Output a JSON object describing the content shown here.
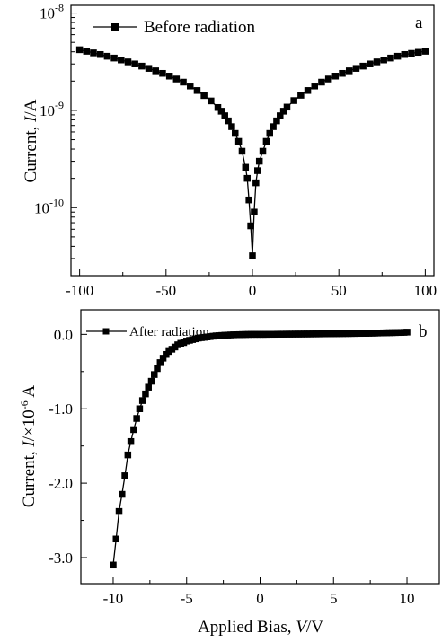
{
  "chart_data": [
    {
      "type": "scatter",
      "panel_label": "a",
      "yscale": "log",
      "ylabel_prefix": "Current, ",
      "ylabel_var": "I",
      "ylabel_suffix": "/A",
      "xlim": [
        -105,
        105
      ],
      "ylim": [
        2e-11,
        1.2e-08
      ],
      "xticks": [
        -100,
        -50,
        0,
        50,
        100
      ],
      "xtick_labels": [
        "-100",
        "-50",
        "0",
        "50",
        "100"
      ],
      "yticks": [
        1e-10,
        1e-09,
        1e-08
      ],
      "ytick_bases": [
        "10",
        "10",
        "10"
      ],
      "ytick_exps": [
        "-10",
        "-9",
        "-8"
      ],
      "legend": {
        "placement": "top-left"
      },
      "series": [
        {
          "name": "Before radiation",
          "x": [
            -100,
            -96,
            -92,
            -88,
            -84,
            -80,
            -76,
            -72,
            -68,
            -64,
            -60,
            -56,
            -52,
            -48,
            -44,
            -40,
            -36,
            -32,
            -28,
            -24,
            -20,
            -18,
            -16,
            -14,
            -12,
            -10,
            -8,
            -6,
            -4,
            -3,
            -2,
            -1,
            0,
            1,
            2,
            3,
            4,
            6,
            8,
            10,
            12,
            14,
            16,
            18,
            20,
            24,
            28,
            32,
            36,
            40,
            44,
            48,
            52,
            56,
            60,
            64,
            68,
            72,
            76,
            80,
            84,
            88,
            92,
            96,
            100
          ],
          "y": [
            4.2e-09,
            4.05e-09,
            3.9e-09,
            3.75e-09,
            3.6e-09,
            3.45e-09,
            3.3e-09,
            3.15e-09,
            3e-09,
            2.85e-09,
            2.7e-09,
            2.55e-09,
            2.4e-09,
            2.25e-09,
            2.1e-09,
            1.95e-09,
            1.78e-09,
            1.6e-09,
            1.42e-09,
            1.25e-09,
            1.07e-09,
            9.8e-10,
            8.8e-10,
            7.8e-10,
            6.8e-10,
            5.8e-10,
            4.8e-10,
            3.8e-10,
            2.6e-10,
            2e-10,
            1.2e-10,
            6.5e-11,
            3.2e-11,
            9e-11,
            1.8e-10,
            2.4e-10,
            3e-10,
            3.8e-10,
            4.8e-10,
            5.8e-10,
            6.8e-10,
            7.8e-10,
            8.8e-10,
            9.8e-10,
            1.08e-09,
            1.26e-09,
            1.43e-09,
            1.6e-09,
            1.78e-09,
            1.95e-09,
            2.1e-09,
            2.25e-09,
            2.4e-09,
            2.55e-09,
            2.7e-09,
            2.85e-09,
            3e-09,
            3.15e-09,
            3.3e-09,
            3.45e-09,
            3.6e-09,
            3.75e-09,
            3.85e-09,
            3.95e-09,
            4.05e-09
          ]
        }
      ]
    },
    {
      "type": "scatter",
      "panel_label": "b",
      "yscale": "linear",
      "xlabel_prefix": "Applied Bias, ",
      "xlabel_var": "V",
      "xlabel_suffix": "/V",
      "ylabel_prefix": "Current, ",
      "ylabel_var": "I",
      "ylabel_mid": "/×10",
      "ylabel_exp": "-6",
      "ylabel_suffix": " A",
      "xlim": [
        -12.2,
        12.2
      ],
      "ylim": [
        -3.35,
        0.33
      ],
      "xticks": [
        -10,
        -5,
        0,
        5,
        10
      ],
      "xtick_labels": [
        "-10",
        "-5",
        "0",
        "5",
        "10"
      ],
      "yticks": [
        0.0,
        -1.0,
        -2.0,
        -3.0
      ],
      "ytick_labels": [
        "0.0",
        "-1.0",
        "-2.0",
        "-3.0"
      ],
      "legend": {
        "placement": "top-left"
      },
      "series": [
        {
          "name": "After radiation",
          "x": [
            -10.0,
            -9.8,
            -9.6,
            -9.4,
            -9.2,
            -9.0,
            -8.8,
            -8.6,
            -8.4,
            -8.2,
            -8.0,
            -7.8,
            -7.6,
            -7.4,
            -7.2,
            -7.0,
            -6.8,
            -6.6,
            -6.4,
            -6.2,
            -6.0,
            -5.8,
            -5.6,
            -5.4,
            -5.2,
            -5.0,
            -4.8,
            -4.6,
            -4.4,
            -4.2,
            -4.0,
            -3.8,
            -3.6,
            -3.4,
            -3.2,
            -3.0,
            -2.8,
            -2.6,
            -2.4,
            -2.2,
            -2.0,
            -1.8,
            -1.6,
            -1.4,
            -1.2,
            -1.0,
            -0.8,
            -0.6,
            -0.4,
            -0.2,
            0.0,
            0.2,
            0.4,
            0.6,
            0.8,
            1.0,
            1.2,
            1.4,
            1.6,
            1.8,
            2.0,
            2.2,
            2.4,
            2.6,
            2.8,
            3.0,
            3.2,
            3.4,
            3.6,
            3.8,
            4.0,
            4.2,
            4.4,
            4.6,
            4.8,
            5.0,
            5.2,
            5.4,
            5.6,
            5.8,
            6.0,
            6.2,
            6.4,
            6.6,
            6.8,
            7.0,
            7.2,
            7.4,
            7.6,
            7.8,
            8.0,
            8.2,
            8.4,
            8.6,
            8.8,
            9.0,
            9.2,
            9.4,
            9.6,
            9.8,
            10.0
          ],
          "y": [
            -3.1,
            -2.75,
            -2.38,
            -2.15,
            -1.9,
            -1.62,
            -1.44,
            -1.28,
            -1.13,
            -1.0,
            -0.89,
            -0.8,
            -0.71,
            -0.63,
            -0.54,
            -0.46,
            -0.38,
            -0.32,
            -0.27,
            -0.23,
            -0.2,
            -0.17,
            -0.14,
            -0.12,
            -0.11,
            -0.09,
            -0.08,
            -0.07,
            -0.06,
            -0.05,
            -0.045,
            -0.04,
            -0.035,
            -0.03,
            -0.025,
            -0.02,
            -0.018,
            -0.015,
            -0.012,
            -0.01,
            -0.008,
            -0.006,
            -0.005,
            -0.004,
            -0.003,
            -0.002,
            -0.001,
            0.0,
            0.0,
            0.0,
            0.0,
            0.0,
            0.0,
            0.001,
            0.001,
            0.001,
            0.002,
            0.002,
            0.002,
            0.003,
            0.003,
            0.003,
            0.004,
            0.004,
            0.004,
            0.005,
            0.005,
            0.005,
            0.006,
            0.006,
            0.006,
            0.007,
            0.007,
            0.008,
            0.008,
            0.009,
            0.009,
            0.01,
            0.01,
            0.011,
            0.011,
            0.012,
            0.012,
            0.013,
            0.013,
            0.014,
            0.014,
            0.015,
            0.016,
            0.017,
            0.018,
            0.019,
            0.02,
            0.021,
            0.022,
            0.023,
            0.024,
            0.025,
            0.026,
            0.027,
            0.03
          ]
        }
      ]
    }
  ]
}
